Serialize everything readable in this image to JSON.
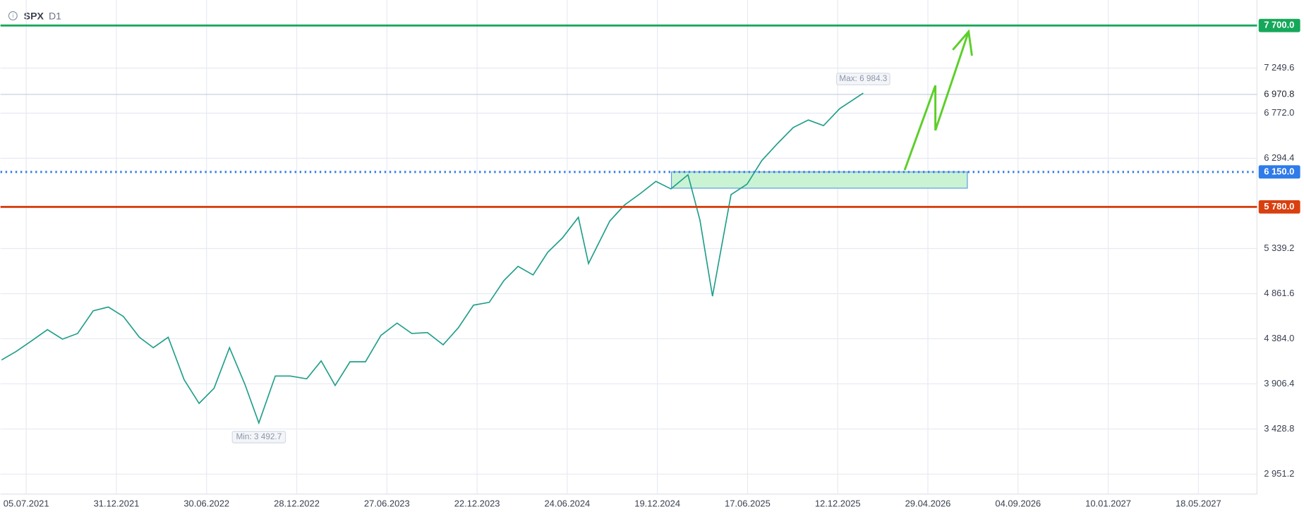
{
  "chart_data": {
    "type": "line",
    "timeframe": "D1",
    "x": [
      "2021-05-17",
      "2021-06-15",
      "2021-07-15",
      "2021-08-16",
      "2021-09-15",
      "2021-10-15",
      "2021-11-15",
      "2021-12-15",
      "2022-01-14",
      "2022-02-15",
      "2022-03-15",
      "2022-04-14",
      "2022-05-16",
      "2022-06-15",
      "2022-07-15",
      "2022-08-15",
      "2022-09-15",
      "2022-10-13",
      "2022-11-15",
      "2022-12-15",
      "2023-01-17",
      "2023-02-15",
      "2023-03-15",
      "2023-04-14",
      "2023-05-15",
      "2023-06-15",
      "2023-07-17",
      "2023-08-15",
      "2023-09-15",
      "2023-10-16",
      "2023-11-15",
      "2023-12-15",
      "2024-01-16",
      "2024-02-15",
      "2024-03-15",
      "2024-04-15",
      "2024-05-15",
      "2024-06-14",
      "2024-07-16",
      "2024-08-05",
      "2024-09-16",
      "2024-10-15",
      "2024-11-15",
      "2024-12-16",
      "2025-01-15",
      "2025-02-18",
      "2025-03-14",
      "2025-04-08",
      "2025-05-15",
      "2025-06-16",
      "2025-07-15",
      "2025-08-15",
      "2025-09-15",
      "2025-10-15",
      "2025-11-14",
      "2025-12-15",
      "2026-01-20"
    ],
    "series": [
      {
        "name": "SPX",
        "color": "#1f9e8a",
        "values": [
          4160,
          4250,
          4360,
          4480,
          4380,
          4440,
          4680,
          4720,
          4620,
          4400,
          4290,
          4400,
          3950,
          3700,
          3860,
          4290,
          3900,
          3492.7,
          3990,
          3990,
          3960,
          4150,
          3890,
          4140,
          4140,
          4420,
          4550,
          4440,
          4450,
          4320,
          4500,
          4740,
          4770,
          5000,
          5150,
          5060,
          5300,
          5450,
          5670,
          5180,
          5630,
          5800,
          5920,
          6050,
          5970,
          6120,
          5640,
          4835,
          5910,
          6020,
          6270,
          6450,
          6620,
          6700,
          6640,
          6820,
          6984.3
        ]
      }
    ],
    "xlim": [
      "2021-05-16",
      "2027-08-09"
    ],
    "xticks": [
      {
        "value": "2021-07-05",
        "label": "05.07.2021"
      },
      {
        "value": "2021-12-31",
        "label": "31.12.2021"
      },
      {
        "value": "2022-06-30",
        "label": "30.06.2022"
      },
      {
        "value": "2022-12-28",
        "label": "28.12.2022"
      },
      {
        "value": "2023-06-27",
        "label": "27.06.2023"
      },
      {
        "value": "2023-12-22",
        "label": "22.12.2023"
      },
      {
        "value": "2024-06-24",
        "label": "24.06.2024"
      },
      {
        "value": "2024-12-19",
        "label": "19.12.2024"
      },
      {
        "value": "2025-06-17",
        "label": "17.06.2025"
      },
      {
        "value": "2025-12-12",
        "label": "12.12.2025"
      },
      {
        "value": "2026-04-29",
        "label": "29.04.2026"
      },
      {
        "value": "2026-09-04",
        "label": "04.09.2026"
      },
      {
        "value": "2027-01-10",
        "label": "10.01.2027"
      },
      {
        "value": "2027-05-18",
        "label": "18.05.2027"
      }
    ],
    "ylim": [
      2740,
      7970
    ],
    "yticks": [
      {
        "value": 2951.2,
        "label": "2 951.2"
      },
      {
        "value": 3428.8,
        "label": "3 428.8"
      },
      {
        "value": 3906.4,
        "label": "3 906.4"
      },
      {
        "value": 4384,
        "label": "4 384.0"
      },
      {
        "value": 4861.6,
        "label": "4 861.6"
      },
      {
        "value": 5339.2,
        "label": "5 339.2"
      },
      {
        "value": 6294.4,
        "label": "6 294.4"
      },
      {
        "value": 6772,
        "label": "6 772.0"
      },
      {
        "value": 7249.6,
        "label": "7 249.6"
      }
    ],
    "grid": true,
    "levels": [
      {
        "value": 7700,
        "label": "7 700.0",
        "color": "#15a85a",
        "style": "solid"
      },
      {
        "value": 6150,
        "label": "6 150.0",
        "color": "#2f7bea",
        "style": "dotted"
      },
      {
        "value": 5780,
        "label": "5 780.0",
        "color": "#d9400f",
        "style": "solid"
      }
    ],
    "last_price": {
      "value": 6970.8,
      "label": "6 970.8"
    },
    "zone": {
      "x": [
        "2025-01-16",
        "2026-06-24"
      ],
      "y": [
        5978,
        6150
      ],
      "color": "#c9f3d3"
    },
    "annotations": [
      {
        "text": "Max: 6 984.3",
        "value": 6984.3,
        "x": "2026-01-20",
        "position": "above"
      },
      {
        "text": "Min: 3 492.7",
        "value": 3492.7,
        "x": "2022-10-13",
        "position": "below"
      }
    ]
  }
}
